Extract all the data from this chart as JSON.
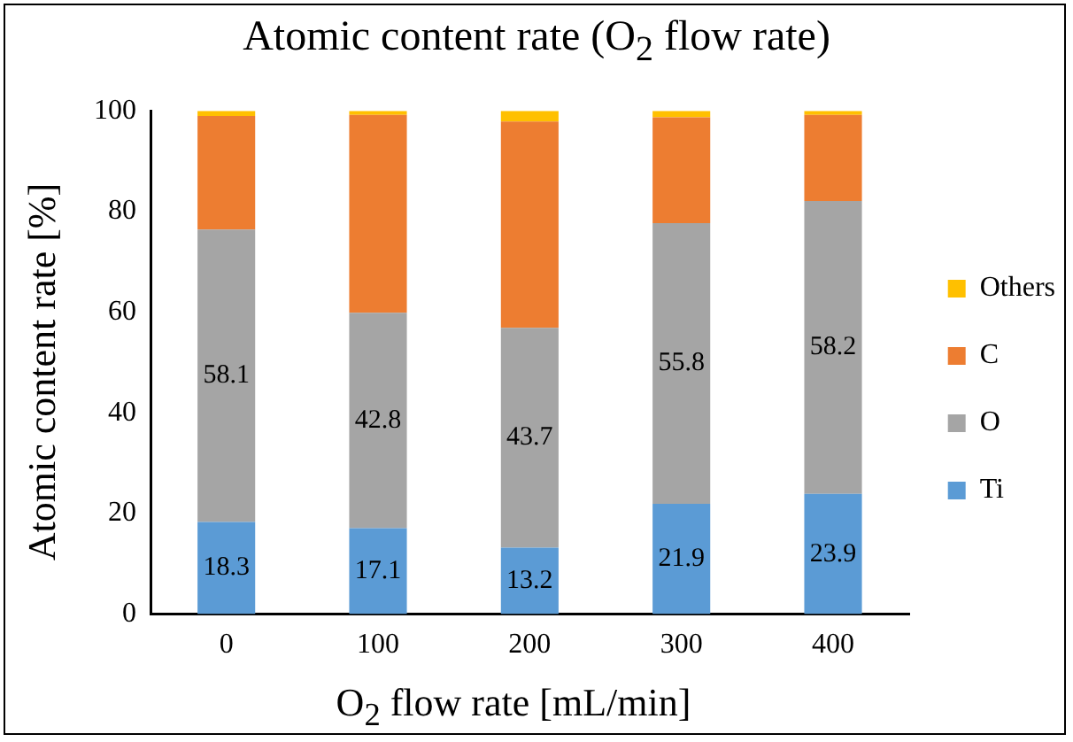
{
  "chart_data": {
    "type": "bar",
    "title": "Atomic content rate  (O$_{2}$ flow rate)",
    "xlabel": "O$_{2}$ flow rate [mL/min]",
    "ylabel": "Atomic content rate [%]",
    "categories": [
      "0",
      "100",
      "200",
      "300",
      "400"
    ],
    "stacked": true,
    "ylim": [
      0,
      100
    ],
    "yticks": [
      0,
      20,
      40,
      60,
      80,
      100
    ],
    "grid": false,
    "legend": "right",
    "series": [
      {
        "name": "Ti",
        "color": "#5b9bd5",
        "values": [
          18.3,
          17.1,
          13.2,
          21.9,
          23.9
        ],
        "value_labels": [
          "18.3",
          "17.1",
          "13.2",
          "21.9",
          "23.9"
        ]
      },
      {
        "name": "O",
        "color": "#a5a5a5",
        "values": [
          58.1,
          42.8,
          43.7,
          55.8,
          58.2
        ],
        "value_labels": [
          "58.1",
          "42.8",
          "43.7",
          "55.8",
          "58.2"
        ]
      },
      {
        "name": "C",
        "color": "#ed7d31",
        "values": [
          22.6,
          39.3,
          41.0,
          21.0,
          17.1
        ]
      },
      {
        "name": "Others",
        "color": "#ffc000",
        "values": [
          1.0,
          0.8,
          2.1,
          1.3,
          0.8
        ]
      }
    ]
  }
}
